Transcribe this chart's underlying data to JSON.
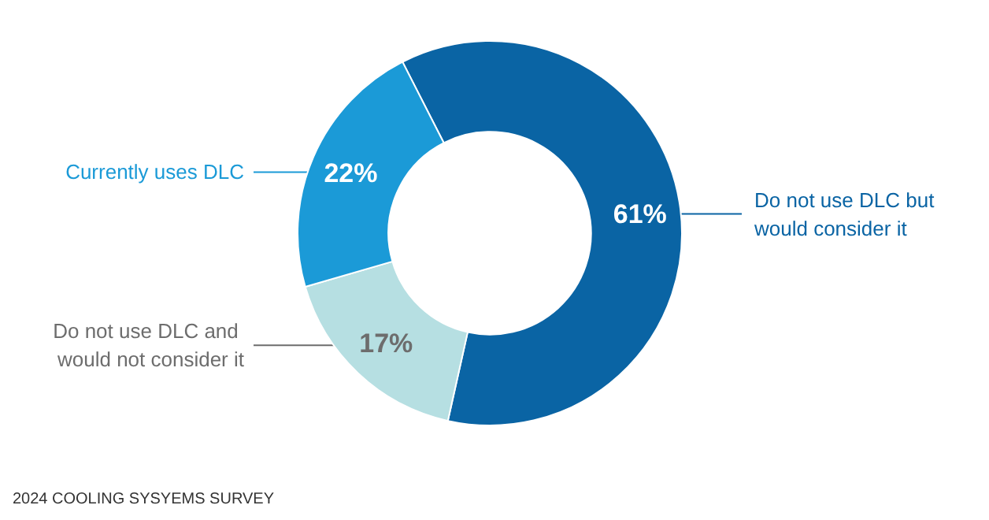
{
  "chart_data": {
    "type": "donut",
    "categories": [
      "Do not use DLC but would consider it",
      "Do not use DLC and would not consider it",
      "Currently uses DLC"
    ],
    "values": [
      61,
      17,
      22
    ],
    "colors": [
      "#0a64a4",
      "#b6dfe2",
      "#1b9ad7"
    ],
    "value_labels": [
      "61%",
      "17%",
      "22%"
    ],
    "legend": false,
    "annotations": [
      "2024 COOLING SYSYEMS SURVEY"
    ]
  }
}
